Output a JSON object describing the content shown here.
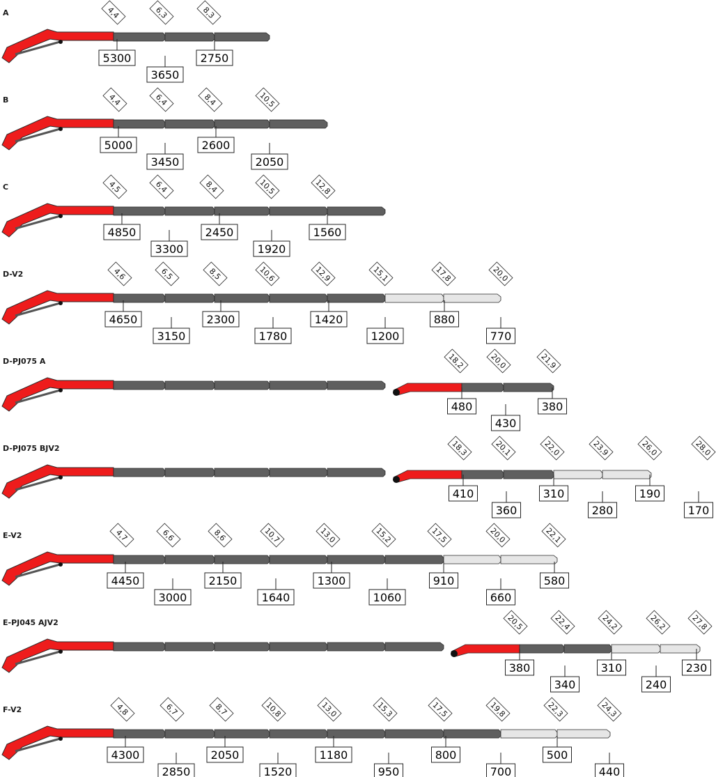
{
  "colors": {
    "boom_red": "#ee1c1c",
    "extension_dark": "#5f5f5f",
    "extension_light": "#e6e6e6",
    "outline": "#2a2a2a"
  },
  "configs": [
    {
      "name": "A",
      "extensions": [
        "dark",
        "dark",
        "dark"
      ],
      "distances": [
        "4,4",
        "6,3",
        "8,3"
      ],
      "loads": [
        "5300",
        "3650",
        "2750"
      ]
    },
    {
      "name": "B",
      "extensions": [
        "dark",
        "dark",
        "dark",
        "dark"
      ],
      "distances": [
        "4,4",
        "6,4",
        "8,4",
        "10,5"
      ],
      "loads": [
        "5000",
        "3450",
        "2600",
        "2050"
      ]
    },
    {
      "name": "C",
      "extensions": [
        "dark",
        "dark",
        "dark",
        "dark",
        "dark"
      ],
      "distances": [
        "4,5",
        "6,4",
        "8,4",
        "10,5",
        "12,8"
      ],
      "loads": [
        "4850",
        "3300",
        "2450",
        "1920",
        "1560"
      ]
    },
    {
      "name": "D-V2",
      "extensions": [
        "dark",
        "dark",
        "dark",
        "dark",
        "dark",
        "light",
        "light"
      ],
      "distances": [
        "4,6",
        "6,5",
        "8,5",
        "10,6",
        "12,9",
        "15,1",
        "17,8",
        "20,0"
      ],
      "loads": [
        "4650",
        "3150",
        "2300",
        "1780",
        "1420",
        "1200",
        "880",
        "770"
      ]
    },
    {
      "name": "D-PJ075 A",
      "extensions": [
        "dark",
        "dark",
        "dark",
        "dark",
        "dark"
      ],
      "jib": {
        "extensions": [
          "dark",
          "dark"
        ]
      },
      "distances": [
        "18,2",
        "20,0",
        "21,9"
      ],
      "loads": [
        "480",
        "430",
        "380"
      ]
    },
    {
      "name": "D-PJ075 BJV2",
      "extensions": [
        "dark",
        "dark",
        "dark",
        "dark",
        "dark"
      ],
      "jib": {
        "extensions": [
          "dark",
          "dark",
          "light",
          "light"
        ]
      },
      "distances": [
        "18,3",
        "20,1",
        "22,0",
        "23,9",
        "26,0",
        "28,0"
      ],
      "loads": [
        "410",
        "360",
        "310",
        "280",
        "190",
        "170"
      ]
    },
    {
      "name": "E-V2",
      "extensions": [
        "dark",
        "dark",
        "dark",
        "dark",
        "dark",
        "dark",
        "light",
        "light"
      ],
      "distances": [
        "4,7",
        "6,6",
        "8,6",
        "10,7",
        "13,0",
        "15,2",
        "17,5",
        "20,0",
        "22,1"
      ],
      "loads": [
        "4450",
        "3000",
        "2150",
        "1640",
        "1300",
        "1060",
        "910",
        "660",
        "580"
      ]
    },
    {
      "name": "E-PJ045 AJV2",
      "extensions": [
        "dark",
        "dark",
        "dark",
        "dark",
        "dark",
        "dark"
      ],
      "jib": {
        "extensions": [
          "dark",
          "dark",
          "light",
          "light"
        ]
      },
      "distances": [
        "20,5",
        "22,4",
        "24,2",
        "26,2",
        "27,8"
      ],
      "loads": [
        "380",
        "340",
        "310",
        "240",
        "230"
      ]
    },
    {
      "name": "F-V2",
      "extensions": [
        "dark",
        "dark",
        "dark",
        "dark",
        "dark",
        "dark",
        "dark",
        "light",
        "light"
      ],
      "distances": [
        "4,8",
        "6,7",
        "8,7",
        "10,8",
        "13,0",
        "15,3",
        "17,5",
        "19,8",
        "22,3",
        "24,3"
      ],
      "loads": [
        "4300",
        "2850",
        "2050",
        "1520",
        "1180",
        "950",
        "800",
        "700",
        "500",
        "440"
      ]
    }
  ]
}
